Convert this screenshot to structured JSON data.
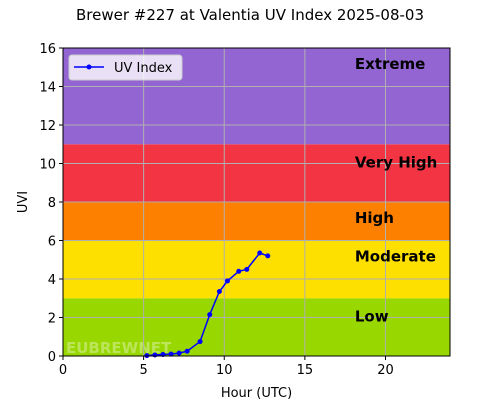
{
  "chart_data": {
    "type": "line",
    "title": "Brewer #227 at Valentia UV Index 2025-08-03",
    "xlabel": "Hour (UTC)",
    "ylabel": "UVI",
    "xlim": [
      0,
      24
    ],
    "ylim": [
      0,
      16
    ],
    "xticks": [
      0,
      5,
      10,
      15,
      20
    ],
    "yticks": [
      0,
      2,
      4,
      6,
      8,
      10,
      12,
      14,
      16
    ],
    "grid": true,
    "legend_position": "top-left",
    "series": [
      {
        "name": "UV Index",
        "color": "#0000ff",
        "x": [
          5.2,
          5.7,
          6.2,
          6.7,
          7.2,
          7.7,
          8.5,
          9.1,
          9.7,
          10.2,
          10.9,
          11.4,
          12.2,
          12.7
        ],
        "y": [
          0.02,
          0.05,
          0.08,
          0.1,
          0.15,
          0.25,
          0.75,
          2.15,
          3.35,
          3.9,
          4.4,
          4.5,
          5.35,
          5.2
        ]
      }
    ],
    "bands": [
      {
        "label": "Low",
        "from": 0,
        "to": 3,
        "color": "#98d800"
      },
      {
        "label": "Moderate",
        "from": 3,
        "to": 6,
        "color": "#fde000"
      },
      {
        "label": "High",
        "from": 6,
        "to": 8,
        "color": "#fd8000"
      },
      {
        "label": "Very High",
        "from": 8,
        "to": 11,
        "color": "#f23443"
      },
      {
        "label": "Extreme",
        "from": 11,
        "to": 16,
        "color": "#9265d3"
      }
    ],
    "watermark": "EUBREWNET"
  }
}
